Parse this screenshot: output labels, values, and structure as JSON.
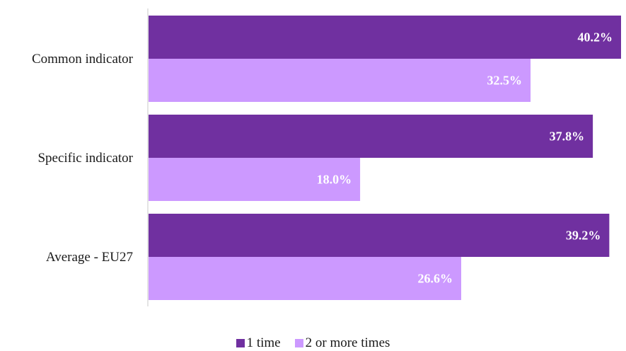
{
  "chart_data": {
    "type": "bar",
    "orientation": "horizontal",
    "categories": [
      "Common indicator",
      "Specific indicator",
      "Average - EU27"
    ],
    "series": [
      {
        "name": "1 time",
        "color": "#7030a0",
        "values": [
          40.2,
          37.8,
          39.2
        ],
        "labels": [
          "40.2%",
          "37.8%",
          "39.2%"
        ]
      },
      {
        "name": "2 or more times",
        "color": "#cc99ff",
        "values": [
          32.5,
          18.0,
          26.6
        ],
        "labels": [
          "32.5%",
          "18.0%",
          "26.6%"
        ]
      }
    ],
    "xlim": [
      0,
      40.2
    ],
    "grid": false,
    "legend": "bottom-center"
  }
}
